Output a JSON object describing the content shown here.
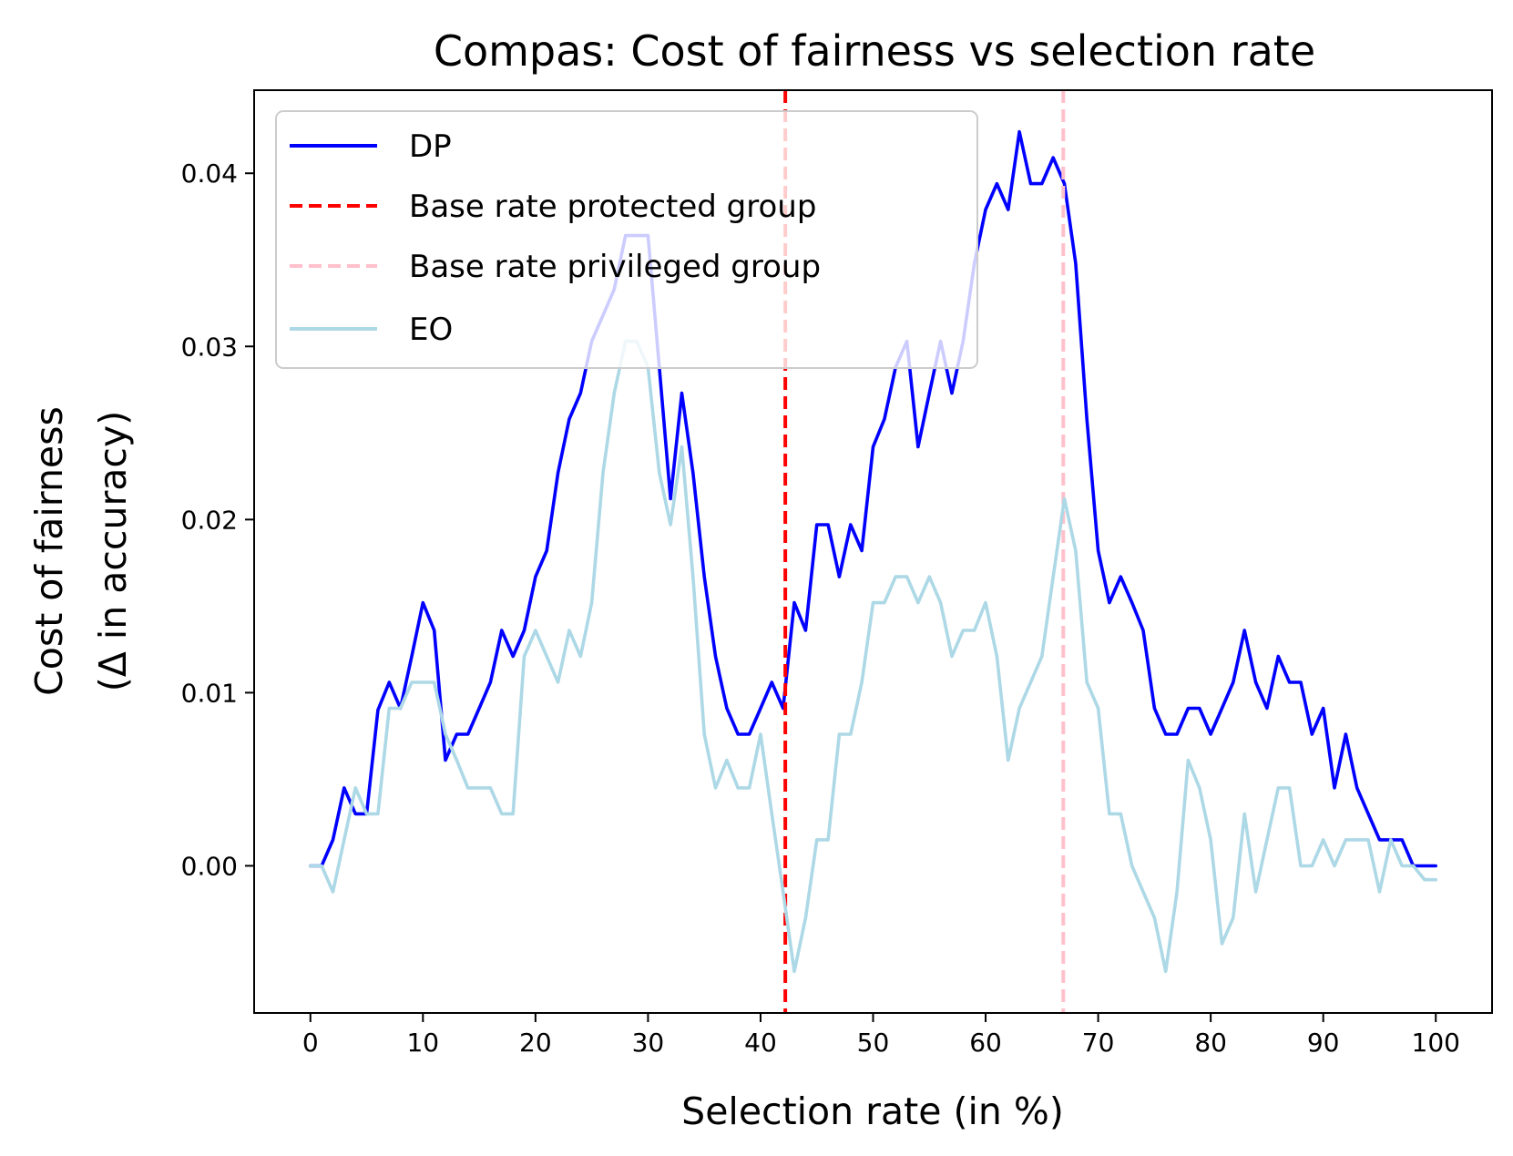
{
  "chart_data": {
    "type": "line",
    "title": "Compas: Cost of fairness vs selection rate",
    "xlabel": "Selection rate (in %)",
    "ylabel_lines": [
      "Cost of fairness",
      "(Δ in accuracy)"
    ],
    "xlim": [
      -5,
      105
    ],
    "ylim": [
      -0.0085,
      0.0448
    ],
    "xticks": [
      0,
      10,
      20,
      30,
      40,
      50,
      60,
      70,
      80,
      90,
      100
    ],
    "xtick_labels": [
      "0",
      "10",
      "20",
      "30",
      "40",
      "50",
      "60",
      "70",
      "80",
      "90",
      "100"
    ],
    "yticks": [
      0.0,
      0.01,
      0.02,
      0.03,
      0.04
    ],
    "ytick_labels": [
      "0.00",
      "0.01",
      "0.02",
      "0.03",
      "0.04"
    ],
    "legend_position": "upper-left",
    "series": [
      {
        "name": "DP",
        "color": "#0000ff",
        "style": "solid",
        "x": [
          0,
          1,
          2,
          3,
          4,
          5,
          6,
          7,
          8,
          9,
          10,
          11,
          12,
          13,
          14,
          15,
          16,
          17,
          18,
          19,
          20,
          21,
          22,
          23,
          24,
          25,
          26,
          27,
          28,
          29,
          30,
          31,
          32,
          33,
          34,
          35,
          36,
          37,
          38,
          39,
          40,
          41,
          42,
          43,
          44,
          45,
          46,
          47,
          48,
          49,
          50,
          51,
          52,
          53,
          54,
          55,
          56,
          57,
          58,
          59,
          60,
          61,
          62,
          63,
          64,
          65,
          66,
          67,
          68,
          69,
          70,
          71,
          72,
          73,
          74,
          75,
          76,
          77,
          78,
          79,
          80,
          81,
          82,
          83,
          84,
          85,
          86,
          87,
          88,
          89,
          90,
          91,
          92,
          93,
          94,
          95,
          96,
          97,
          98,
          99,
          100
        ],
        "y": [
          0.0,
          0.0,
          0.0015,
          0.0045,
          0.003,
          0.003,
          0.009,
          0.0106,
          0.0091,
          0.0121,
          0.0152,
          0.0136,
          0.0061,
          0.0076,
          0.0076,
          0.0091,
          0.0106,
          0.0136,
          0.0121,
          0.0136,
          0.0167,
          0.0182,
          0.0227,
          0.0258,
          0.0273,
          0.0303,
          0.0318,
          0.0333,
          0.0364,
          0.0364,
          0.0364,
          0.0288,
          0.0212,
          0.0273,
          0.0227,
          0.0167,
          0.0121,
          0.0091,
          0.0076,
          0.0076,
          0.0091,
          0.0106,
          0.0091,
          0.0152,
          0.0136,
          0.0197,
          0.0197,
          0.0167,
          0.0197,
          0.0182,
          0.0242,
          0.0258,
          0.0288,
          0.0303,
          0.0242,
          0.0273,
          0.0303,
          0.0273,
          0.0303,
          0.0348,
          0.0379,
          0.0394,
          0.0379,
          0.0424,
          0.0394,
          0.0394,
          0.0409,
          0.0394,
          0.0348,
          0.0258,
          0.0182,
          0.0152,
          0.0167,
          0.0152,
          0.0136,
          0.0091,
          0.0076,
          0.0076,
          0.0091,
          0.0091,
          0.0076,
          0.0091,
          0.0106,
          0.0136,
          0.0106,
          0.0091,
          0.0121,
          0.0106,
          0.0106,
          0.0076,
          0.0091,
          0.0045,
          0.0076,
          0.0045,
          0.003,
          0.0015,
          0.0015,
          0.0015,
          0.0,
          0.0,
          0.0
        ]
      },
      {
        "name": "Base rate protected group",
        "color": "#ff0000",
        "style": "dashed",
        "vline_x": 42.2
      },
      {
        "name": "Base rate privileged group",
        "color": "#ffc0cb",
        "style": "dashed",
        "vline_x": 66.9
      },
      {
        "name": "EO",
        "color": "#add8e6",
        "style": "solid",
        "x": [
          0,
          1,
          2,
          3,
          4,
          5,
          6,
          7,
          8,
          9,
          10,
          11,
          12,
          13,
          14,
          15,
          16,
          17,
          18,
          19,
          20,
          21,
          22,
          23,
          24,
          25,
          26,
          27,
          28,
          29,
          30,
          31,
          32,
          33,
          34,
          35,
          36,
          37,
          38,
          39,
          40,
          41,
          42,
          43,
          44,
          45,
          46,
          47,
          48,
          49,
          50,
          51,
          52,
          53,
          54,
          55,
          56,
          57,
          58,
          59,
          60,
          61,
          62,
          63,
          64,
          65,
          66,
          67,
          68,
          69,
          70,
          71,
          72,
          73,
          74,
          75,
          76,
          77,
          78,
          79,
          80,
          81,
          82,
          83,
          84,
          85,
          86,
          87,
          88,
          89,
          90,
          91,
          92,
          93,
          94,
          95,
          96,
          97,
          98,
          99,
          100
        ],
        "y": [
          0.0,
          0.0,
          -0.0015,
          0.0015,
          0.0045,
          0.003,
          0.003,
          0.0091,
          0.0091,
          0.0106,
          0.0106,
          0.0106,
          0.0076,
          0.0061,
          0.0045,
          0.0045,
          0.0045,
          0.003,
          0.003,
          0.0121,
          0.0136,
          0.0121,
          0.0106,
          0.0136,
          0.0121,
          0.0152,
          0.0227,
          0.0273,
          0.0303,
          0.0303,
          0.0288,
          0.0227,
          0.0197,
          0.0242,
          0.0167,
          0.0076,
          0.0045,
          0.0061,
          0.0045,
          0.0045,
          0.0076,
          0.003,
          -0.0015,
          -0.0061,
          -0.003,
          0.0015,
          0.0015,
          0.0076,
          0.0076,
          0.0106,
          0.0152,
          0.0152,
          0.0167,
          0.0167,
          0.0152,
          0.0167,
          0.0152,
          0.0121,
          0.0136,
          0.0136,
          0.0152,
          0.0121,
          0.0061,
          0.0091,
          0.0106,
          0.0121,
          0.0167,
          0.0212,
          0.0182,
          0.0106,
          0.0091,
          0.003,
          0.003,
          0.0,
          -0.0015,
          -0.003,
          -0.0061,
          -0.0015,
          0.0061,
          0.0045,
          0.0015,
          -0.0045,
          -0.003,
          0.003,
          -0.0015,
          0.0015,
          0.0045,
          0.0045,
          0.0,
          0.0,
          0.0015,
          0.0,
          0.0015,
          0.0015,
          0.0015,
          -0.0015,
          0.0015,
          0.0,
          0.0,
          -0.0008,
          -0.0008
        ]
      }
    ]
  }
}
